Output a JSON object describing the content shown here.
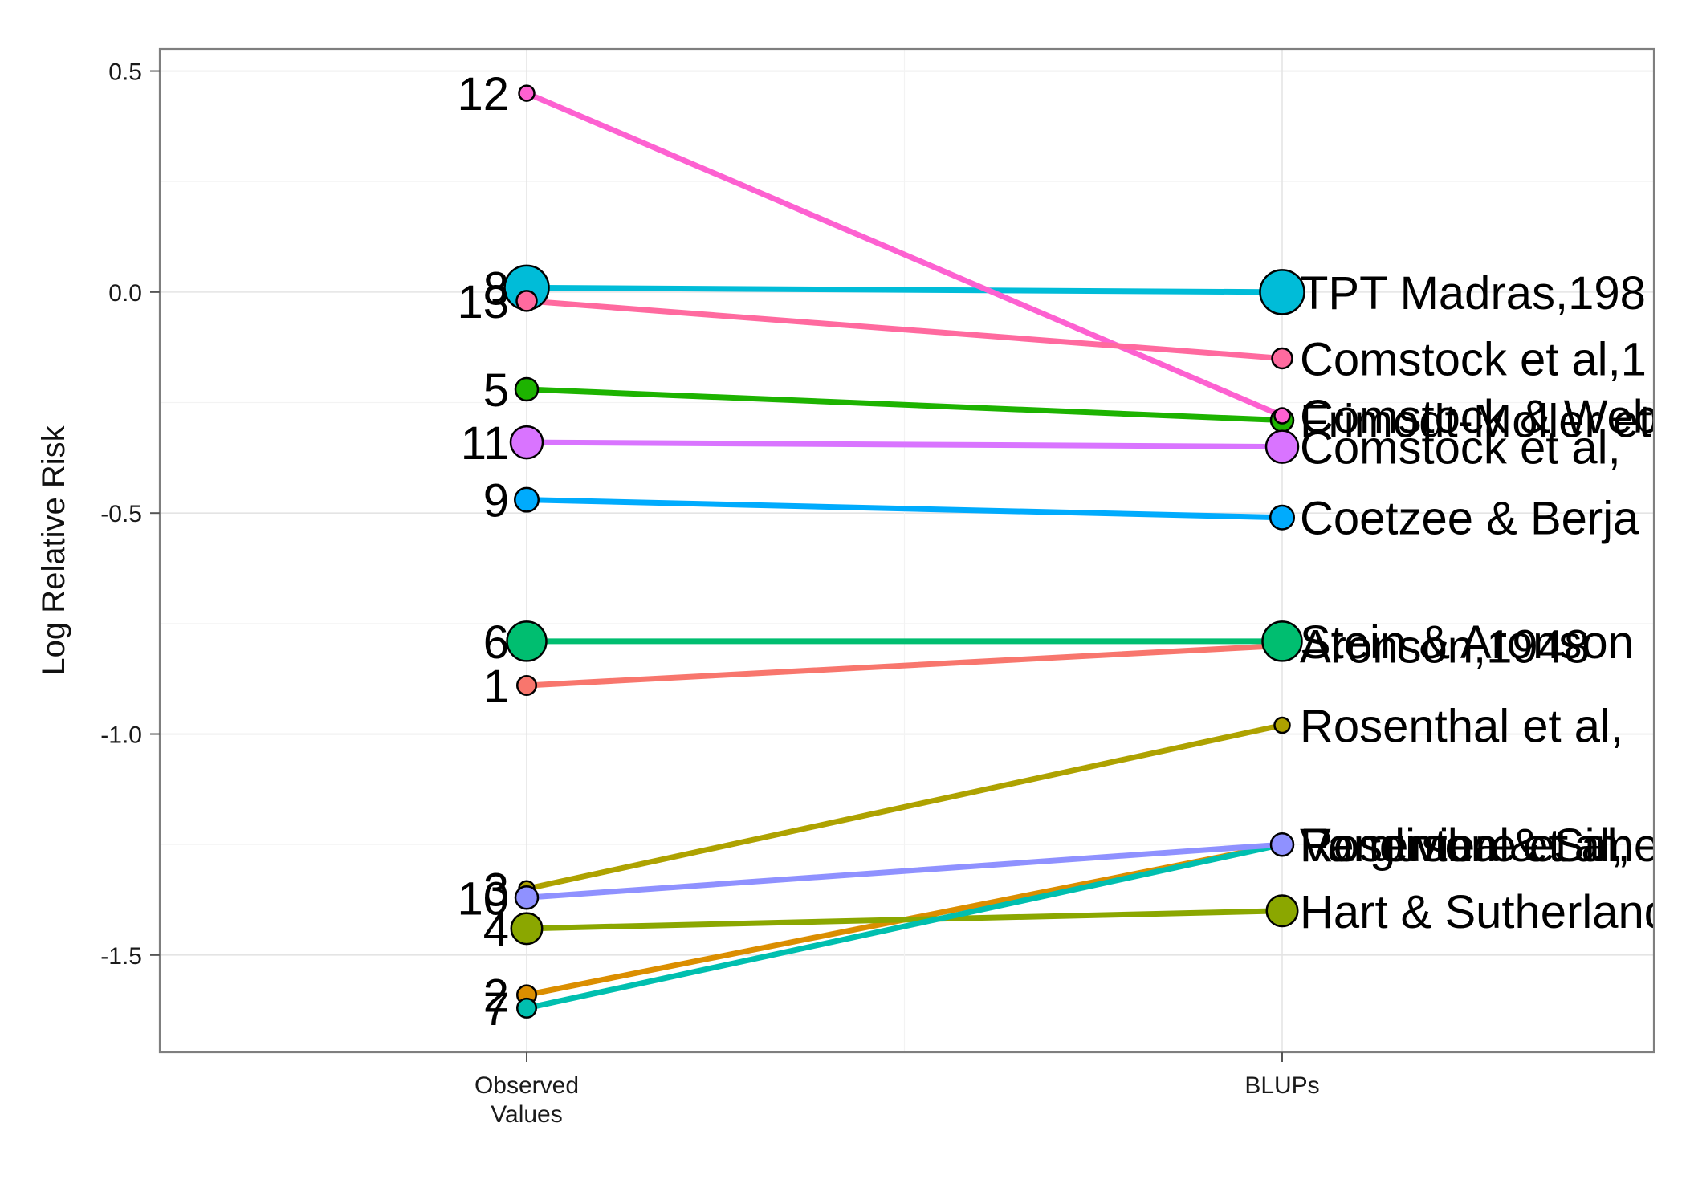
{
  "chart_data": {
    "type": "line",
    "xlabel": "",
    "ylabel": "Log Relative Risk",
    "ylim": [
      -1.72,
      0.55
    ],
    "yticks": [
      0.5,
      0.0,
      -0.5,
      -1.0,
      -1.5
    ],
    "ytick_labels": [
      "0.5",
      "0.0",
      "-0.5",
      "-1.0",
      "-1.5"
    ],
    "categories": [
      {
        "key": "observed",
        "lines": [
          "Observed",
          "Values"
        ]
      },
      {
        "key": "blups",
        "lines": [
          "BLUPs"
        ]
      }
    ],
    "grid": true,
    "legend": "none",
    "series": [
      {
        "id": "1",
        "label": "Aronson,1948",
        "color": "#F8766D",
        "observed": -0.89,
        "blup": -0.8,
        "weight": 0.25
      },
      {
        "id": "2",
        "label": "Ferguson & Simes,",
        "color": "#DB8E00",
        "observed": -1.59,
        "blup": -1.25,
        "weight": 0.25
      },
      {
        "id": "3",
        "label": "Rosenthal et al,",
        "color": "#AEA200",
        "observed": -1.35,
        "blup": -0.98,
        "weight": 0.1
      },
      {
        "id": "4",
        "label": "Hart & Sutherland",
        "color": "#8BA700",
        "observed": -1.44,
        "blup": -1.4,
        "weight": 0.75
      },
      {
        "id": "5",
        "label": "Frimodt-Moller et",
        "color": "#1DB300",
        "observed": -0.22,
        "blup": -0.29,
        "weight": 0.4
      },
      {
        "id": "6",
        "label": "Stein & Aronson",
        "color": "#00BE70",
        "observed": -0.79,
        "blup": -0.79,
        "weight": 1.1
      },
      {
        "id": "7",
        "label": "Vandiviere et al,",
        "color": "#00BFAF",
        "observed": -1.62,
        "blup": -1.25,
        "weight": 0.25
      },
      {
        "id": "8",
        "label": "TPT Madras,198",
        "color": "#00BCD8",
        "observed": 0.01,
        "blup": 0.0,
        "weight": 1.3
      },
      {
        "id": "9",
        "label": "Coetzee & Berja",
        "color": "#00ABFD",
        "observed": -0.47,
        "blup": -0.51,
        "weight": 0.45
      },
      {
        "id": "10",
        "label": "Rosenthal et al,",
        "color": "#8F91FF",
        "observed": -1.37,
        "blup": -1.25,
        "weight": 0.4
      },
      {
        "id": "11",
        "label": "Comstock et al,",
        "color": "#D974FF",
        "observed": -0.34,
        "blup": -0.35,
        "weight": 0.8
      },
      {
        "id": "12",
        "label": "Comstock & Webs",
        "color": "#FD61D1",
        "observed": 0.45,
        "blup": -0.28,
        "weight": 0.1
      },
      {
        "id": "13",
        "label": "Comstock et al,1",
        "color": "#FF6A9F",
        "observed": -0.02,
        "blup": -0.15,
        "weight": 0.3
      }
    ]
  }
}
